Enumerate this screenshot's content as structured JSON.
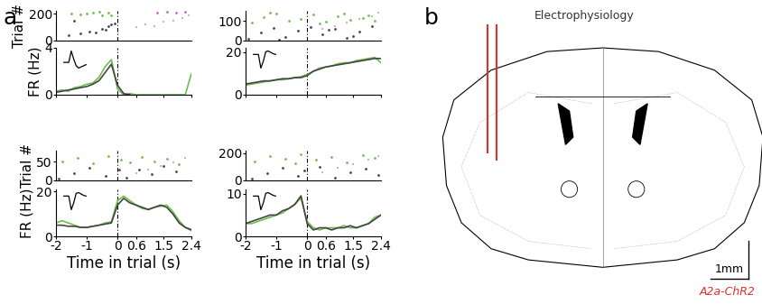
{
  "panel_labels": [
    "a",
    "b"
  ],
  "chart_data": [
    {
      "type": "scatter",
      "ylabel": "Trial #",
      "xlim": [
        -2,
        2.4
      ],
      "ylim": [
        0,
        220
      ],
      "yticks": [
        0,
        200
      ],
      "tick_labels": "y",
      "vline": 0,
      "series": [
        {
          "color": "#6cc04a",
          "marker": "dot",
          "x": [
            -1.2,
            -0.8,
            -0.5,
            -0.3,
            -1.5,
            -0.2,
            -0.6,
            -1.0
          ],
          "y": [
            195,
            205,
            190,
            210,
            200,
            185,
            215,
            198
          ]
        },
        {
          "color": "#444444",
          "marker": "dot",
          "x": [
            -1.6,
            -1.2,
            -0.9,
            -0.5,
            -0.3,
            -0.1,
            -1.4,
            -0.7,
            -0.4,
            -0.2
          ],
          "y": [
            40,
            55,
            70,
            90,
            110,
            130,
            150,
            60,
            80,
            120
          ]
        },
        {
          "color": "#bbbbbb",
          "marker": "square",
          "x": [
            0.6,
            0.9,
            1.2,
            1.5,
            1.8,
            2.1,
            2.3
          ],
          "y": [
            100,
            120,
            110,
            140,
            150,
            170,
            190
          ]
        },
        {
          "color": "#cc66cc",
          "marker": "dot",
          "x": [
            1.3,
            1.6,
            1.9,
            2.2
          ],
          "y": [
            210,
            212,
            208,
            214
          ]
        }
      ]
    },
    {
      "type": "line",
      "ylabel": "FR (Hz)",
      "xlim": [
        -2,
        2.4
      ],
      "xticks": [
        -2,
        -1,
        0,
        0.6,
        1.5,
        2.4
      ],
      "ylim": [
        0,
        4
      ],
      "yticks": [
        0,
        4
      ],
      "tick_labels": "y",
      "vline": 0,
      "waveform": [
        0,
        0,
        0,
        1,
        0.3,
        -0.3,
        -0.5,
        -0.4,
        -0.3,
        -0.2
      ],
      "x": [
        -2,
        -1.8,
        -1.6,
        -1.4,
        -1.2,
        -1,
        -0.8,
        -0.6,
        -0.4,
        -0.2,
        0,
        0.2,
        0.4,
        0.6,
        0.8,
        1,
        1.2,
        1.4,
        1.6,
        1.8,
        2,
        2.2,
        2.4
      ],
      "series": [
        {
          "color": "#6cc04a",
          "values": [
            0.3,
            0.4,
            0.3,
            0.6,
            0.7,
            0.9,
            1.0,
            1.5,
            2.4,
            3.0,
            0.5,
            0.0,
            0.1,
            0.0,
            0.0,
            0.0,
            0.0,
            0.0,
            0.0,
            0.0,
            0.0,
            0.0,
            1.8
          ]
        },
        {
          "color": "#444444",
          "values": [
            0.2,
            0.3,
            0.4,
            0.5,
            0.6,
            0.7,
            0.9,
            1.2,
            1.9,
            2.6,
            0.8,
            0.1,
            0.0,
            null,
            null,
            null,
            null,
            null,
            null,
            null,
            null,
            null,
            null
          ]
        }
      ]
    },
    {
      "type": "scatter",
      "xlim": [
        -2,
        2.4
      ],
      "ylim": [
        0,
        150
      ],
      "yticks": [
        0,
        100
      ],
      "tick_labels": "y",
      "vline": 0,
      "series": [
        {
          "color": "#6cc04a",
          "marker": "dot",
          "x": [
            -1.8,
            -1.4,
            -1,
            -0.6,
            -0.2,
            0.2,
            0.6,
            1,
            1.4,
            1.8,
            2.2,
            -1.2,
            0.4,
            1.2,
            2.0
          ],
          "y": [
            90,
            120,
            135,
            100,
            110,
            130,
            95,
            125,
            105,
            115,
            100,
            140,
            85,
            138,
            128
          ]
        },
        {
          "color": "#444444",
          "marker": "dot",
          "x": [
            -1.9,
            -1.5,
            -1.1,
            -0.7,
            -0.3,
            0.1,
            0.5,
            0.9,
            1.3,
            1.7,
            2.1,
            -0.9,
            0.7,
            1.5
          ],
          "y": [
            10,
            40,
            65,
            20,
            50,
            70,
            30,
            60,
            15,
            45,
            75,
            5,
            55,
            25
          ]
        },
        {
          "color": "#bbbbbb",
          "marker": "square",
          "x": [
            0.5,
            0.9,
            1.3,
            1.7,
            2.1,
            2.3
          ],
          "y": [
            60,
            75,
            90,
            110,
            125,
            140
          ]
        }
      ]
    },
    {
      "type": "line",
      "xlim": [
        -2,
        2.4
      ],
      "xticks": [
        -2,
        -1,
        0,
        0.6,
        1.5,
        2.4
      ],
      "ylim": [
        0,
        22
      ],
      "yticks": [
        0,
        20
      ],
      "tick_labels": "y",
      "vline": 0,
      "waveform": [
        0,
        0,
        0,
        -1,
        -0.5,
        0.2,
        0.25,
        0.15,
        0.05,
        0
      ],
      "x": [
        -2,
        -1.8,
        -1.6,
        -1.4,
        -1.2,
        -1,
        -0.8,
        -0.6,
        -0.4,
        -0.2,
        0,
        0.2,
        0.4,
        0.6,
        0.8,
        1,
        1.2,
        1.4,
        1.6,
        1.8,
        2,
        2.2,
        2.4
      ],
      "series": [
        {
          "color": "#6cc04a",
          "values": [
            4.5,
            5,
            5.5,
            6,
            6.5,
            7,
            7,
            7.5,
            8,
            8.5,
            9.5,
            11,
            12.5,
            13,
            13.5,
            14.5,
            15,
            15,
            16,
            16.5,
            17,
            17.5,
            15
          ]
        },
        {
          "color": "#444444",
          "values": [
            5,
            5.5,
            6,
            6.5,
            6.5,
            7,
            7.5,
            7.5,
            8,
            8,
            9,
            11,
            12,
            13,
            13.5,
            14,
            14.5,
            15,
            15.5,
            16,
            16.5,
            17,
            17
          ]
        }
      ]
    },
    {
      "type": "scatter",
      "ylabel": "Trial #",
      "xlim": [
        -2,
        2.4
      ],
      "ylim": [
        0,
        80
      ],
      "yticks": [
        0,
        50
      ],
      "tick_labels": "y",
      "vline": 0,
      "series": [
        {
          "color": "#6cc04a",
          "marker": "dot",
          "x": [
            -1.8,
            -1.3,
            -0.8,
            -0.3,
            0.1,
            0.4,
            0.8,
            1.2,
            1.6,
            2.0
          ],
          "y": [
            50,
            60,
            45,
            65,
            55,
            48,
            62,
            52,
            58,
            44
          ]
        },
        {
          "color": "#444444",
          "marker": "dot",
          "x": [
            -1.9,
            -1.4,
            -0.9,
            -0.4,
            0.05,
            0.3,
            0.7,
            1.1,
            1.5,
            1.9
          ],
          "y": [
            5,
            20,
            35,
            12,
            28,
            8,
            30,
            18,
            38,
            25
          ]
        },
        {
          "color": "#bbbbbb",
          "marker": "square",
          "x": [
            0.6,
            1.0,
            1.4,
            1.8,
            2.2
          ],
          "y": [
            20,
            30,
            38,
            48,
            60
          ]
        }
      ]
    },
    {
      "type": "line",
      "ylabel": "FR (Hz)",
      "xlabel": "Time in trial (s)",
      "xlim": [
        -2,
        2.4
      ],
      "xticks": [
        -2,
        -1,
        0,
        0.6,
        1.5,
        2.4
      ],
      "ylim": [
        0,
        21
      ],
      "yticks": [
        0,
        20
      ],
      "vline": 0,
      "waveform": [
        0,
        0,
        0,
        -1,
        -0.5,
        0.2,
        0.25,
        0.15,
        0.05,
        0
      ],
      "x": [
        -2,
        -1.8,
        -1.6,
        -1.4,
        -1.2,
        -1,
        -0.8,
        -0.6,
        -0.4,
        -0.2,
        0,
        0.2,
        0.4,
        0.6,
        0.8,
        1,
        1.2,
        1.4,
        1.6,
        1.8,
        2,
        2.2,
        2.4
      ],
      "series": [
        {
          "color": "#6cc04a",
          "values": [
            6,
            7,
            6,
            5,
            4,
            4,
            4.5,
            5,
            6,
            6.5,
            16,
            18,
            16,
            14,
            12.5,
            12,
            13,
            13.5,
            14,
            11,
            7,
            4,
            2.5
          ]
        },
        {
          "color": "#444444",
          "values": [
            5,
            5,
            4.5,
            4.5,
            4,
            4,
            4.5,
            5,
            5.5,
            6,
            14,
            17,
            15,
            14,
            13,
            12,
            13,
            14,
            13,
            10,
            6,
            4,
            3
          ]
        }
      ]
    },
    {
      "type": "scatter",
      "xlim": [
        -2,
        2.4
      ],
      "ylim": [
        0,
        220
      ],
      "yticks": [
        0,
        200
      ],
      "tick_labels": "y",
      "vline": 0,
      "series": [
        {
          "color": "#6cc04a",
          "marker": "dot",
          "x": [
            -1.7,
            -1.2,
            -0.7,
            -0.2,
            0.3,
            0.8,
            1.3,
            1.8,
            2.2,
            -0.4
          ],
          "y": [
            140,
            180,
            160,
            195,
            150,
            170,
            130,
            185,
            165,
            125
          ]
        },
        {
          "color": "#444444",
          "marker": "dot",
          "x": [
            -1.8,
            -1.3,
            -0.8,
            -0.3,
            -0.1,
            0.4,
            0.9,
            1.4,
            1.9,
            2.3
          ],
          "y": [
            10,
            50,
            90,
            30,
            70,
            100,
            20,
            60,
            85,
            40
          ]
        },
        {
          "color": "#bbbbbb",
          "marker": "square",
          "x": [
            0.5,
            1.0,
            1.5,
            2.0,
            2.3
          ],
          "y": [
            60,
            90,
            120,
            150,
            180
          ]
        }
      ]
    },
    {
      "type": "line",
      "xlabel": "Time in trial (s)",
      "xlim": [
        -2,
        2.4
      ],
      "xticks": [
        -2,
        -1,
        0,
        0.6,
        1.5,
        2.4
      ],
      "ylim": [
        0,
        11
      ],
      "yticks": [
        0,
        10
      ],
      "vline": 0,
      "waveform": [
        0,
        0,
        0,
        -1,
        -0.5,
        0.2,
        0.25,
        0.15,
        0.05,
        0
      ],
      "x": [
        -2,
        -1.8,
        -1.6,
        -1.4,
        -1.2,
        -1,
        -0.8,
        -0.6,
        -0.4,
        -0.2,
        0,
        0.2,
        0.4,
        0.6,
        0.8,
        1,
        1.2,
        1.4,
        1.6,
        1.8,
        2,
        2.2,
        2.4
      ],
      "series": [
        {
          "color": "#6cc04a",
          "values": [
            3,
            3,
            3.5,
            4,
            4.5,
            5,
            5.5,
            6.5,
            7.5,
            9,
            3.5,
            2,
            1.5,
            2,
            2,
            2,
            2.5,
            2,
            2,
            2.5,
            3,
            4.5,
            5
          ]
        },
        {
          "color": "#444444",
          "values": [
            3,
            3.5,
            4,
            4.5,
            5,
            5,
            6,
            6.5,
            7.5,
            9.5,
            3,
            1.5,
            2,
            2,
            1.5,
            2,
            2,
            2.5,
            2,
            2.5,
            3,
            4,
            5
          ]
        }
      ]
    }
  ],
  "diagram": {
    "title": "Electrophysiology",
    "scale_bar": "1mm",
    "label": "A2a-ChR2",
    "label_color": "#e0302a"
  }
}
